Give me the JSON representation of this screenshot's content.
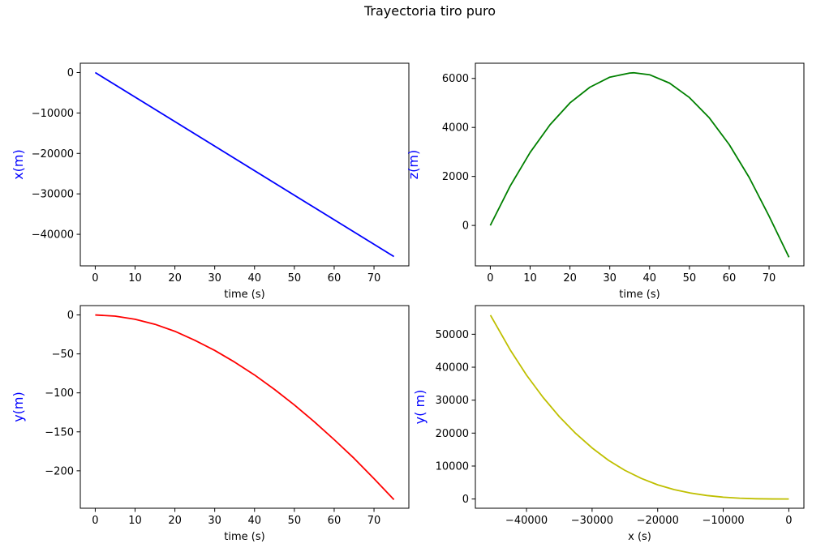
{
  "figure": {
    "suptitle": "Trayectoria tiro puro"
  },
  "chart_data": [
    {
      "type": "line",
      "xlabel": "time (s)",
      "ylabel": "x(m)",
      "ylabel_color": "#0000ff",
      "line_color": "#0000ff",
      "xlim": [
        -3.75,
        78.75
      ],
      "ylim": [
        -47800,
        2300
      ],
      "xticks": [
        0,
        10,
        20,
        30,
        40,
        50,
        60,
        70
      ],
      "xtick_labels": [
        "0",
        "10",
        "20",
        "30",
        "40",
        "50",
        "60",
        "70"
      ],
      "yticks": [
        0,
        -10000,
        -20000,
        -30000,
        -40000
      ],
      "ytick_labels": [
        "0",
        "−10000",
        "−20000",
        "−30000",
        "−40000"
      ],
      "grid": false,
      "series": [
        {
          "x": [
            0,
            75
          ],
          "y": [
            0,
            -45500
          ]
        }
      ]
    },
    {
      "type": "line",
      "xlabel": "time (s)",
      "ylabel": "z(m)",
      "ylabel_color": "#0000ff",
      "line_color": "#008000",
      "xlim": [
        -3.75,
        78.75
      ],
      "ylim": [
        -1650,
        6620
      ],
      "xticks": [
        0,
        10,
        20,
        30,
        40,
        50,
        60,
        70
      ],
      "xtick_labels": [
        "0",
        "10",
        "20",
        "30",
        "40",
        "50",
        "60",
        "70"
      ],
      "yticks": [
        0,
        2000,
        4000,
        6000
      ],
      "ytick_labels": [
        "0",
        "2000",
        "4000",
        "6000"
      ],
      "grid": false,
      "series": [
        {
          "x": [
            0,
            5,
            10,
            15,
            20,
            25,
            30,
            35,
            36,
            40,
            45,
            50,
            55,
            60,
            65,
            70,
            75
          ],
          "y": [
            0,
            1610,
            2980,
            4110,
            5000,
            5640,
            6050,
            6220,
            6230,
            6150,
            5810,
            5220,
            4390,
            3300,
            1960,
            380,
            -1300
          ]
        }
      ]
    },
    {
      "type": "line",
      "xlabel": "time (s)",
      "ylabel": "y(m)",
      "ylabel_color": "#0000ff",
      "line_color": "#ff0000",
      "xlim": [
        -3.75,
        78.75
      ],
      "ylim": [
        -248,
        12
      ],
      "xticks": [
        0,
        10,
        20,
        30,
        40,
        50,
        60,
        70
      ],
      "xtick_labels": [
        "0",
        "10",
        "20",
        "30",
        "40",
        "50",
        "60",
        "70"
      ],
      "yticks": [
        0,
        -50,
        -100,
        -150,
        -200
      ],
      "ytick_labels": [
        "0",
        "−50",
        "−100",
        "−150",
        "−200"
      ],
      "grid": false,
      "series": [
        {
          "x": [
            0,
            5,
            10,
            15,
            20,
            25,
            30,
            35,
            40,
            45,
            50,
            55,
            60,
            65,
            70,
            75
          ],
          "y": [
            0,
            -1.5,
            -5.5,
            -12,
            -21,
            -32.5,
            -45.5,
            -60.5,
            -77,
            -95.5,
            -115.5,
            -137,
            -160,
            -184,
            -210,
            -237
          ]
        }
      ]
    },
    {
      "type": "line",
      "xlabel": "x (s)",
      "ylabel": "y( m)",
      "ylabel_color": "#0000ff",
      "line_color": "#bfbf00",
      "xlim": [
        -47800,
        2300
      ],
      "ylim": [
        -2800,
        58700
      ],
      "xticks": [
        -40000,
        -30000,
        -20000,
        -10000,
        0
      ],
      "xtick_labels": [
        "−40000",
        "−30000",
        "−20000",
        "−10000",
        "0"
      ],
      "yticks": [
        0,
        10000,
        20000,
        30000,
        40000,
        50000
      ],
      "ytick_labels": [
        "0",
        "10000",
        "20000",
        "30000",
        "40000",
        "50000"
      ],
      "grid": false,
      "series": [
        {
          "x": [
            -45500,
            -42500,
            -40000,
            -37500,
            -35000,
            -32500,
            -30000,
            -27500,
            -25000,
            -22500,
            -20000,
            -17500,
            -15000,
            -12500,
            -10000,
            -7500,
            -5000,
            -2500,
            0
          ],
          "y": [
            55800,
            45300,
            37600,
            30900,
            25000,
            19900,
            15500,
            11750,
            8700,
            6250,
            4300,
            2860,
            1810,
            1060,
            560,
            250,
            80,
            10,
            0
          ]
        }
      ]
    }
  ]
}
